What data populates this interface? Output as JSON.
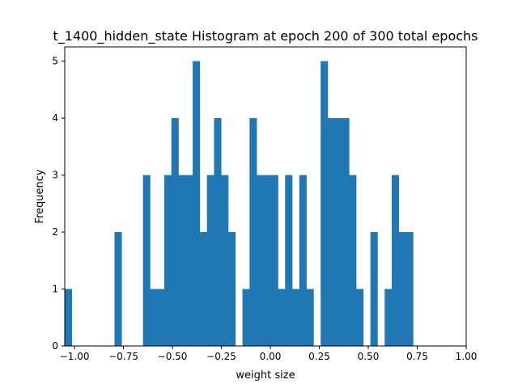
{
  "chart_data": {
    "type": "bar",
    "title": "t_1400_hidden_state Histogram at epoch 200 of 300 total epochs",
    "xlabel": "weight size",
    "ylabel": "Frequency",
    "xlim": [
      -1.05,
      1.0
    ],
    "ylim": [
      0,
      5.25
    ],
    "xticks": [
      -1.0,
      -0.75,
      -0.5,
      -0.25,
      0.0,
      0.25,
      0.5,
      0.75,
      1.0
    ],
    "xtick_labels": [
      "−1.00",
      "−0.75",
      "−0.50",
      "−0.25",
      "0.00",
      "0.25",
      "0.50",
      "0.75",
      "1.00"
    ],
    "yticks": [
      0,
      1,
      2,
      3,
      4,
      5
    ],
    "ytick_labels": [
      "0",
      "1",
      "2",
      "3",
      "4",
      "5"
    ],
    "bin_start": -1.05,
    "bin_width": 0.0363,
    "counts": [
      1,
      0,
      0,
      0,
      0,
      0,
      0,
      2,
      0,
      0,
      0,
      3,
      1,
      1,
      3,
      4,
      3,
      3,
      5,
      2,
      3,
      4,
      3,
      2,
      0,
      1,
      4,
      3,
      3,
      3,
      1,
      3,
      1,
      3,
      1,
      0,
      5,
      4,
      4,
      4,
      3,
      1,
      0,
      2,
      0,
      1,
      3,
      2,
      2
    ],
    "bar_color": "#1f77b4",
    "grid": false,
    "legend": false
  }
}
